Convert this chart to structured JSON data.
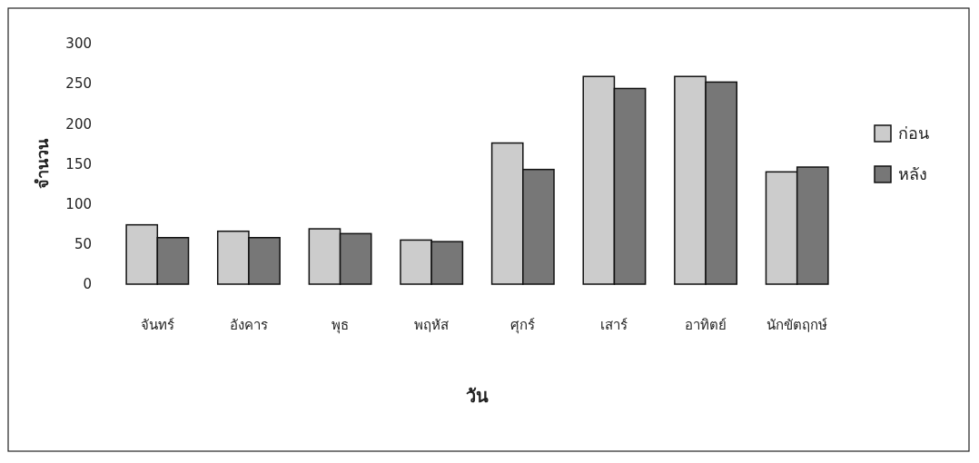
{
  "chart_data": {
    "type": "bar",
    "xlabel": "วัน",
    "ylabel": "จำนวน",
    "categories": [
      "จันทร์",
      "อังคาร",
      "พุธ",
      "พฤหัส",
      "ศุกร์",
      "เสาร์",
      "อาทิตย์",
      "นักขัตฤกษ์"
    ],
    "series": [
      {
        "name": "ก่อน",
        "color": "#cccccc",
        "values": [
          74,
          66,
          69,
          55,
          176,
          259,
          259,
          140
        ]
      },
      {
        "name": "หลัง",
        "color": "#777777",
        "values": [
          58,
          58,
          63,
          53,
          143,
          244,
          252,
          146
        ]
      }
    ],
    "ylim": [
      0,
      300
    ],
    "yticks": [
      0,
      50,
      100,
      150,
      200,
      250,
      300
    ],
    "grid": false,
    "legend": "right"
  }
}
